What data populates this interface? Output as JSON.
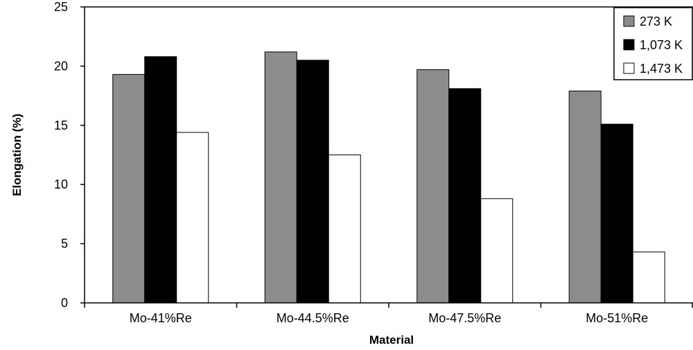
{
  "chart_data": {
    "type": "bar",
    "title": "",
    "xlabel": "Material",
    "ylabel": "Elongation (%)",
    "categories": [
      "Mo-41%Re",
      "Mo-44.5%Re",
      "Mo-47.5%Re",
      "Mo-51%Re"
    ],
    "series": [
      {
        "name": "273 K",
        "values": [
          19.3,
          21.2,
          19.7,
          17.9
        ],
        "color": "#8c8c8c"
      },
      {
        "name": "1,073 K",
        "values": [
          20.8,
          20.5,
          18.1,
          15.1
        ],
        "color": "#000000"
      },
      {
        "name": "1,473 K",
        "values": [
          14.4,
          12.5,
          8.8,
          4.3
        ],
        "color": "#ffffff"
      }
    ],
    "ylim": [
      0,
      25
    ],
    "yticks": [
      "0",
      "5",
      "10",
      "15",
      "20",
      "25"
    ],
    "grid": false,
    "legend_position": "top-right"
  }
}
